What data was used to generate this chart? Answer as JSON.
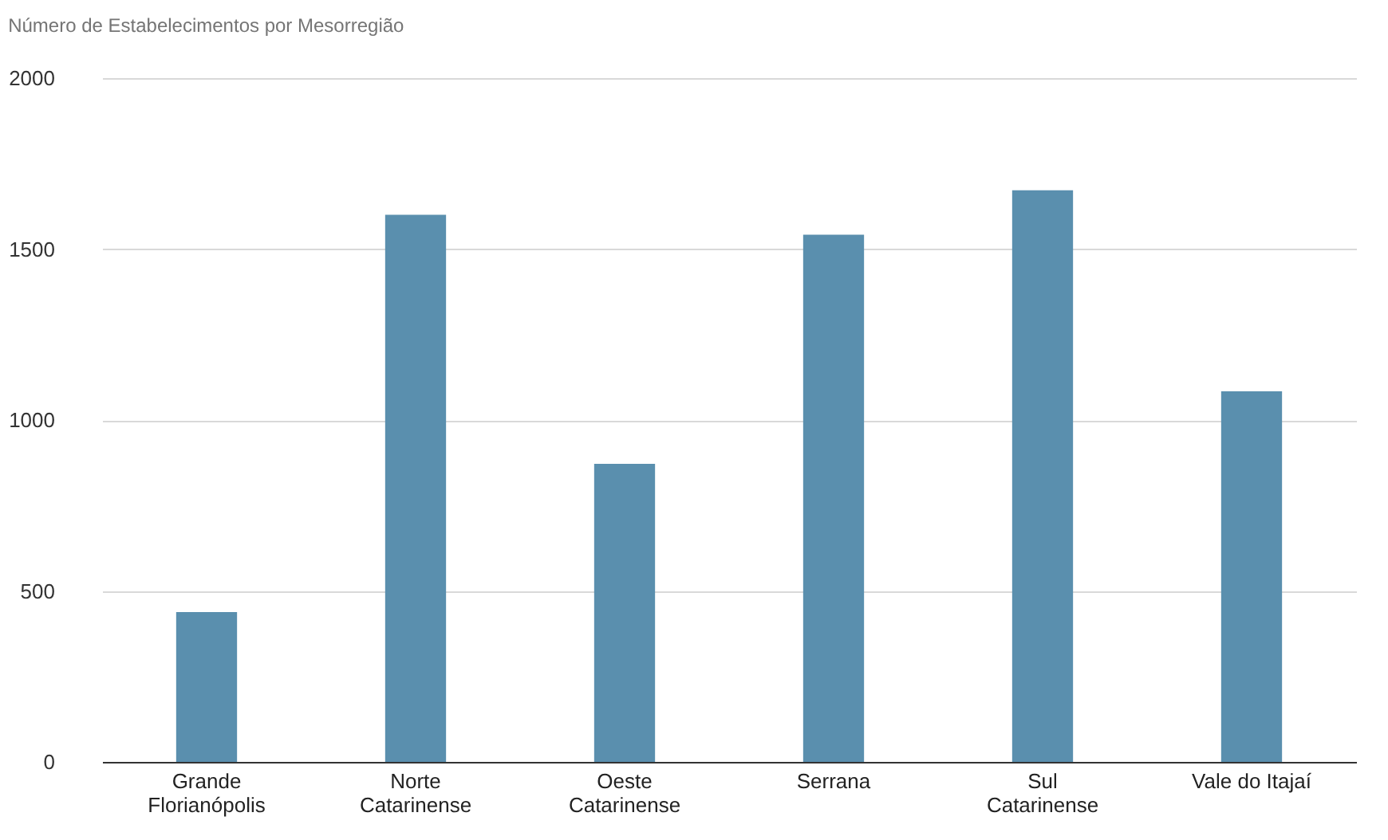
{
  "chart_data": {
    "type": "bar",
    "title": "Número de Estabelecimentos por Mesorregião",
    "categories": [
      "Grande Florianópolis",
      "Norte Catarinense",
      "Oeste Catarinense",
      "Serrana",
      "Sul Catarinense",
      "Vale do Itajaí"
    ],
    "values": [
      438,
      1600,
      872,
      1542,
      1672,
      1084
    ],
    "color": "#5a8fae",
    "ylim": [
      0,
      2000
    ],
    "yticks": [
      0,
      500,
      1000,
      1500,
      2000
    ],
    "grid": "y"
  }
}
